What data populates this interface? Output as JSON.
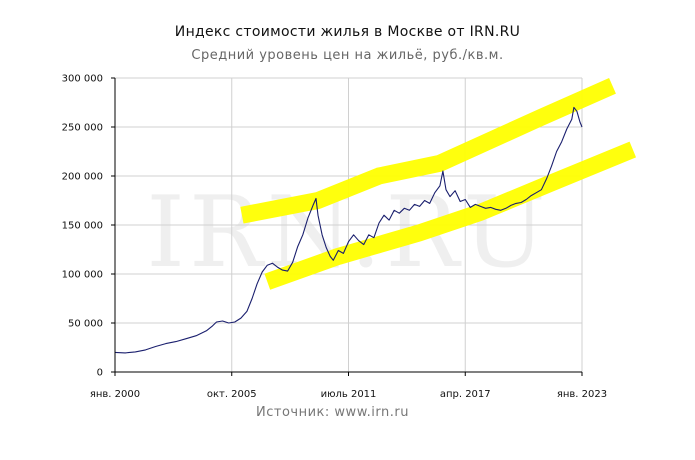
{
  "chart_data": {
    "type": "line",
    "title": "Индекс стоимости жилья в Москве от IRN.RU",
    "subtitle": "Средний уровень цен на жильё, руб./кв.м.",
    "source": "Источник: www.irn.ru",
    "watermark": "IRN.RU",
    "xlabel": "",
    "ylabel": "",
    "x_ticks": [
      "янв. 2000",
      "окт. 2005",
      "июль 2011",
      "апр. 2017",
      "янв. 2023"
    ],
    "x_tick_values": [
      2000.0,
      2005.75,
      2011.5,
      2017.25,
      2023.0
    ],
    "xlim": [
      2000.0,
      2023.0
    ],
    "y_ticks": [
      "0",
      "50 000",
      "100 000",
      "150 000",
      "200 000",
      "250 000",
      "300 000"
    ],
    "y_tick_values": [
      0,
      50000,
      100000,
      150000,
      200000,
      250000,
      300000
    ],
    "ylim": [
      0,
      300000
    ],
    "grid": true,
    "line_color": "#1a1f6e",
    "band_color": "#ffff00",
    "series": [
      {
        "points": [
          [
            2000.0,
            20000
          ],
          [
            2000.5,
            19500
          ],
          [
            2001.0,
            20500
          ],
          [
            2001.5,
            22500
          ],
          [
            2002.0,
            26000
          ],
          [
            2002.5,
            29000
          ],
          [
            2003.0,
            31000
          ],
          [
            2003.5,
            34000
          ],
          [
            2004.0,
            37000
          ],
          [
            2004.5,
            42000
          ],
          [
            2004.8,
            47000
          ],
          [
            2005.0,
            51000
          ],
          [
            2005.3,
            52000
          ],
          [
            2005.6,
            50000
          ],
          [
            2005.9,
            51000
          ],
          [
            2006.2,
            55000
          ],
          [
            2006.5,
            62000
          ],
          [
            2006.75,
            75000
          ],
          [
            2007.0,
            90000
          ],
          [
            2007.25,
            102000
          ],
          [
            2007.5,
            109000
          ],
          [
            2007.75,
            111000
          ],
          [
            2008.0,
            107000
          ],
          [
            2008.25,
            104000
          ],
          [
            2008.5,
            103000
          ],
          [
            2008.75,
            112000
          ],
          [
            2009.0,
            128000
          ],
          [
            2009.25,
            140000
          ],
          [
            2009.5,
            157000
          ],
          [
            2009.75,
            170000
          ],
          [
            2009.9,
            177000
          ],
          [
            2010.0,
            160000
          ],
          [
            2010.2,
            140000
          ],
          [
            2010.4,
            127000
          ],
          [
            2010.6,
            118000
          ],
          [
            2010.75,
            114000
          ],
          [
            2011.0,
            124000
          ],
          [
            2011.25,
            121000
          ],
          [
            2011.5,
            133000
          ],
          [
            2011.75,
            140000
          ],
          [
            2012.0,
            134000
          ],
          [
            2012.25,
            130000
          ],
          [
            2012.5,
            140000
          ],
          [
            2012.75,
            137000
          ],
          [
            2013.0,
            152000
          ],
          [
            2013.25,
            160000
          ],
          [
            2013.5,
            155000
          ],
          [
            2013.75,
            165000
          ],
          [
            2014.0,
            162000
          ],
          [
            2014.25,
            167000
          ],
          [
            2014.5,
            165000
          ],
          [
            2014.75,
            171000
          ],
          [
            2015.0,
            169000
          ],
          [
            2015.25,
            175000
          ],
          [
            2015.5,
            172000
          ],
          [
            2015.75,
            183000
          ],
          [
            2016.0,
            190000
          ],
          [
            2016.15,
            205000
          ],
          [
            2016.3,
            186000
          ],
          [
            2016.5,
            179000
          ],
          [
            2016.75,
            185000
          ],
          [
            2017.0,
            174000
          ],
          [
            2017.25,
            176000
          ],
          [
            2017.5,
            168000
          ],
          [
            2017.75,
            171000
          ],
          [
            2018.0,
            169000
          ],
          [
            2018.25,
            167000
          ],
          [
            2018.5,
            168000
          ],
          [
            2018.75,
            166000
          ],
          [
            2019.0,
            165000
          ],
          [
            2019.25,
            167000
          ],
          [
            2019.5,
            170000
          ],
          [
            2019.75,
            172000
          ],
          [
            2020.0,
            173000
          ],
          [
            2020.25,
            176000
          ],
          [
            2020.5,
            180000
          ],
          [
            2020.75,
            183000
          ],
          [
            2021.0,
            186000
          ],
          [
            2021.25,
            197000
          ],
          [
            2021.5,
            210000
          ],
          [
            2021.75,
            225000
          ],
          [
            2022.0,
            235000
          ],
          [
            2022.25,
            248000
          ],
          [
            2022.5,
            258000
          ],
          [
            2022.6,
            270000
          ],
          [
            2022.75,
            266000
          ],
          [
            2022.9,
            255000
          ],
          [
            2023.0,
            250000
          ]
        ]
      }
    ],
    "bands": [
      {
        "points": [
          [
            2006.25,
            160000
          ],
          [
            2010.0,
            175000
          ],
          [
            2013.0,
            200000
          ],
          [
            2016.0,
            213000
          ],
          [
            2021.0,
            260000
          ],
          [
            2024.5,
            292000
          ]
        ]
      },
      {
        "points": [
          [
            2007.5,
            92000
          ],
          [
            2011.0,
            118000
          ],
          [
            2015.0,
            142000
          ],
          [
            2018.0,
            163000
          ],
          [
            2021.5,
            193000
          ],
          [
            2025.5,
            227000
          ]
        ]
      }
    ]
  }
}
